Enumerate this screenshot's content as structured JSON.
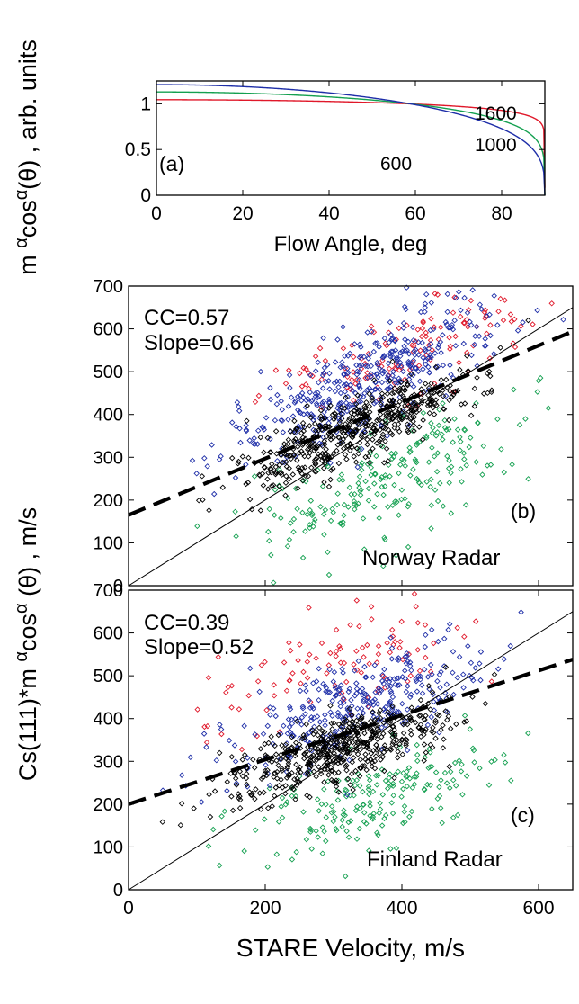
{
  "colors": {
    "red": "#e0182a",
    "green": "#14a050",
    "blue": "#1e2ea8",
    "black": "#000000"
  },
  "shared_ylabels": {
    "top_prefix": "m ",
    "top_alpha": "α",
    "top_cos": "cos",
    "top_sup": "α",
    "top_theta": "(θ)",
    "top_suffix": " , arb. units",
    "bottom_prefix": "Cs(111)*m ",
    "bottom_alpha": "α",
    "bottom_cos": "cos",
    "bottom_sup": "α",
    "bottom_theta": " (θ)",
    "bottom_suffix": " , m/s"
  },
  "chart_data": [
    {
      "type": "line",
      "panel_label": "(a)",
      "xlabel": "Flow Angle, deg",
      "xlim": [
        0,
        90
      ],
      "ylim": [
        0,
        1.25
      ],
      "xticks": [
        "0",
        "20",
        "40",
        "60",
        "80"
      ],
      "yticks": [
        "0",
        "0.5",
        "1"
      ],
      "series": [
        {
          "name": "1600",
          "color": "red",
          "alpha": 0.068,
          "scale": 1.045
        },
        {
          "name": "1000",
          "color": "green",
          "alpha": 0.185,
          "scale": 1.13
        },
        {
          "name": "600",
          "color": "blue",
          "alpha": 0.29,
          "scale": 1.21
        }
      ]
    },
    {
      "type": "scatter",
      "panel_label": "(b)",
      "annotations": [
        "CC=0.57",
        "Slope=0.66"
      ],
      "site": "Norway Radar",
      "xlim": [
        0,
        650
      ],
      "ylim": [
        0,
        700
      ],
      "xticks": [],
      "yticks": [
        "0",
        "100",
        "200",
        "300",
        "400",
        "500",
        "600",
        "700"
      ],
      "fit_line": {
        "intercept": 165,
        "slope": 0.66
      },
      "identity_line": true,
      "clusters": [
        {
          "color": "black",
          "x_center": 330,
          "x_spread": 85,
          "y_intercept": 140,
          "y_slope": 0.68,
          "y_noise": 38,
          "count": 520
        },
        {
          "color": "blue",
          "x_center": 350,
          "x_spread": 95,
          "y_intercept": 200,
          "y_slope": 0.78,
          "y_noise": 55,
          "count": 420
        },
        {
          "color": "red",
          "x_center": 420,
          "x_spread": 110,
          "y_intercept": 330,
          "y_slope": 0.55,
          "y_noise": 55,
          "count": 140
        },
        {
          "color": "green",
          "x_center": 370,
          "x_spread": 100,
          "y_intercept": 30,
          "y_slope": 0.58,
          "y_noise": 65,
          "count": 230
        }
      ]
    },
    {
      "type": "scatter",
      "panel_label": "(c)",
      "annotations": [
        "CC=0.39",
        "Slope=0.52"
      ],
      "site": "Finland Radar",
      "xlabel": "STARE Velocity, m/s",
      "xlim": [
        0,
        650
      ],
      "ylim": [
        0,
        700
      ],
      "xticks": [
        "0",
        "200",
        "400",
        "600"
      ],
      "yticks": [
        "0",
        "100",
        "200",
        "300",
        "400",
        "500",
        "600",
        "700"
      ],
      "fit_line": {
        "intercept": 200,
        "slope": 0.52
      },
      "identity_line": true,
      "clusters": [
        {
          "color": "black",
          "x_center": 310,
          "x_spread": 80,
          "y_intercept": 170,
          "y_slope": 0.5,
          "y_noise": 38,
          "count": 520
        },
        {
          "color": "blue",
          "x_center": 330,
          "x_spread": 95,
          "y_intercept": 230,
          "y_slope": 0.6,
          "y_noise": 55,
          "count": 330
        },
        {
          "color": "red",
          "x_center": 290,
          "x_spread": 110,
          "y_intercept": 360,
          "y_slope": 0.55,
          "y_noise": 60,
          "count": 110
        },
        {
          "color": "green",
          "x_center": 350,
          "x_spread": 90,
          "y_intercept": 40,
          "y_slope": 0.5,
          "y_noise": 55,
          "count": 200
        }
      ]
    }
  ]
}
